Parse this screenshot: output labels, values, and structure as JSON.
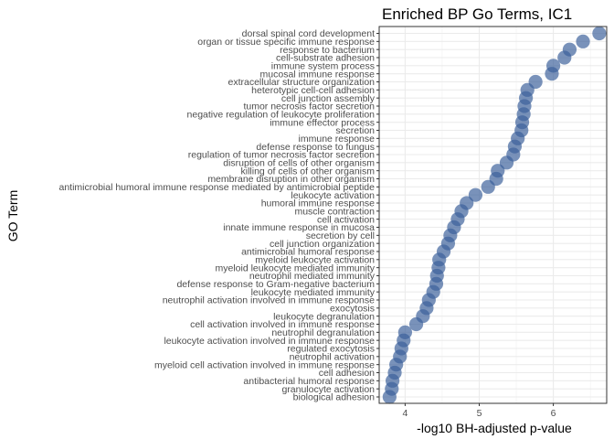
{
  "chart_data": {
    "type": "scatter",
    "title": "Enriched BP Go Terms, IC1",
    "xlabel": "-log10 BH-adjusted p-value",
    "ylabel": "GO Term",
    "xlim": [
      3.65,
      6.72
    ],
    "xticks": [
      4,
      5,
      6
    ],
    "grid": true,
    "point_color": "#3a5f9a",
    "categories": [
      "dorsal spinal cord development",
      "organ or tissue specific immune response",
      "response to bacterium",
      "cell-substrate adhesion",
      "immune system process",
      "mucosal immune response",
      "extracellular structure organization",
      "heterotypic cell-cell adhesion",
      "cell junction assembly",
      "tumor necrosis factor secretion",
      "negative regulation of leukocyte proliferation",
      "immune effector process",
      "secretion",
      "immune response",
      "defense response to fungus",
      "regulation of tumor necrosis factor secretion",
      "disruption of cells of other organism",
      "killing of cells of other organism",
      "membrane disruption in other organism",
      "antimicrobial humoral immune response mediated by antimicrobial peptide",
      "leukocyte activation",
      "humoral immune response",
      "muscle contraction",
      "cell activation",
      "innate immune response in mucosa",
      "secretion by cell",
      "cell junction organization",
      "antimicrobial humoral response",
      "myeloid leukocyte activation",
      "myeloid leukocyte mediated immunity",
      "neutrophil mediated immunity",
      "defense response to Gram-negative bacterium",
      "leukocyte mediated immunity",
      "neutrophil activation involved in immune response",
      "exocytosis",
      "leukocyte degranulation",
      "cell activation involved in immune response",
      "neutrophil degranulation",
      "leukocyte activation involved in immune response",
      "regulated exocytosis",
      "neutrophil activation",
      "myeloid cell activation involved in immune response",
      "cell adhesion",
      "antibacterial humoral response",
      "granulocyte activation",
      "biological adhesion"
    ],
    "values": [
      6.62,
      6.4,
      6.22,
      6.15,
      6.0,
      5.98,
      5.76,
      5.65,
      5.63,
      5.61,
      5.6,
      5.58,
      5.57,
      5.52,
      5.48,
      5.46,
      5.37,
      5.25,
      5.23,
      5.12,
      4.95,
      4.83,
      4.76,
      4.71,
      4.66,
      4.61,
      4.58,
      4.52,
      4.46,
      4.45,
      4.43,
      4.42,
      4.38,
      4.32,
      4.29,
      4.24,
      4.15,
      4.0,
      3.98,
      3.95,
      3.93,
      3.88,
      3.86,
      3.83,
      3.82,
      3.79
    ]
  }
}
